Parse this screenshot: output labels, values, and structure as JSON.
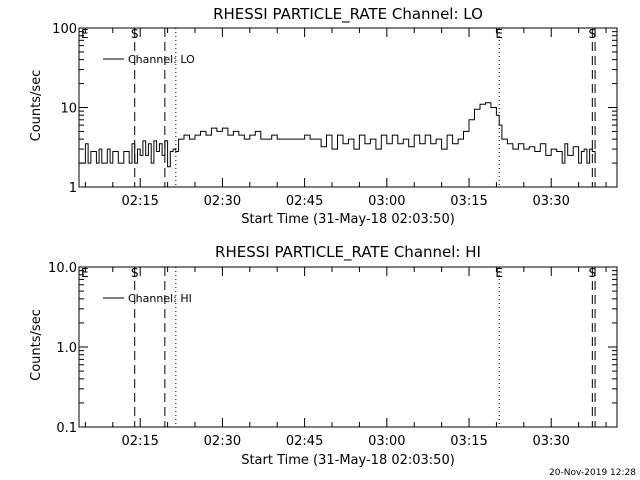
{
  "footer": {
    "timestamp": "20-Nov-2019 12:28"
  },
  "chart_data": [
    {
      "type": "line",
      "title": "RHESSI PARTICLE_RATE Channel: LO",
      "xlabel": "Start Time (31-May-18 02:03:50)",
      "ylabel": "Counts/sec",
      "yscale": "log",
      "ylim": [
        1,
        100
      ],
      "yticks": [
        {
          "v": 1,
          "label": "1"
        },
        {
          "v": 10,
          "label": "10"
        },
        {
          "v": 100,
          "label": "100"
        }
      ],
      "x_ticks": [
        "02:15",
        "02:30",
        "02:45",
        "03:00",
        "03:15",
        "03:30"
      ],
      "legend": {
        "position": "top-left",
        "label": "Channel: LO"
      },
      "markers": [
        {
          "label": "E",
          "time": "02:04",
          "style": "none"
        },
        {
          "label": "S",
          "time": "02:14",
          "style": "dashed"
        },
        {
          "label": "",
          "time": "02:19.5",
          "style": "dashed"
        },
        {
          "label": "",
          "time": "02:21.5",
          "style": "dotted"
        },
        {
          "label": "E",
          "time": "03:20.5",
          "style": "dotted"
        },
        {
          "label": "S",
          "time": "03:37.5",
          "style": "dashed"
        },
        {
          "label": "",
          "time": "03:38",
          "style": "dashed"
        }
      ],
      "series": [
        {
          "name": "Channel: LO",
          "points": [
            [
              "02:04",
              2
            ],
            [
              "02:05",
              3.5
            ],
            [
              "02:05.5",
              2
            ],
            [
              "02:06",
              2.8
            ],
            [
              "02:07",
              2
            ],
            [
              "02:07.5",
              3
            ],
            [
              "02:08",
              2
            ],
            [
              "02:09",
              3
            ],
            [
              "02:09.5",
              2
            ],
            [
              "02:10",
              2.8
            ],
            [
              "02:11",
              2
            ],
            [
              "02:12",
              2.8
            ],
            [
              "02:12.5",
              2.8
            ],
            [
              "02:13",
              2
            ],
            [
              "02:13.5",
              3.5
            ],
            [
              "02:14",
              2
            ],
            [
              "02:14.5",
              3
            ],
            [
              "02:15",
              2.5
            ],
            [
              "02:15.5",
              3.8
            ],
            [
              "02:16",
              2.5
            ],
            [
              "02:16.5",
              3.5
            ],
            [
              "02:17",
              2
            ],
            [
              "02:17.5",
              3.8
            ],
            [
              "02:18",
              2.8
            ],
            [
              "02:18.5",
              3.5
            ],
            [
              "02:19",
              2.5
            ],
            [
              "02:19.5",
              3.8
            ],
            [
              "02:20",
              1.8
            ],
            [
              "02:20.5",
              2.8
            ],
            [
              "02:21",
              3
            ],
            [
              "02:21.5",
              2.8
            ],
            [
              "02:22",
              4
            ],
            [
              "02:23",
              4.5
            ],
            [
              "02:24",
              4
            ],
            [
              "02:25",
              4.5
            ],
            [
              "02:26",
              5
            ],
            [
              "02:27",
              4.5
            ],
            [
              "02:28",
              5.5
            ],
            [
              "02:29",
              5
            ],
            [
              "02:30",
              5.5
            ],
            [
              "02:31",
              4.5
            ],
            [
              "02:32",
              5
            ],
            [
              "02:33",
              4.5
            ],
            [
              "02:34",
              4
            ],
            [
              "02:35",
              4.5
            ],
            [
              "02:36",
              5
            ],
            [
              "02:37",
              4
            ],
            [
              "02:38",
              4
            ],
            [
              "02:39",
              4.5
            ],
            [
              "02:40",
              4
            ],
            [
              "02:41",
              4
            ],
            [
              "02:42",
              4
            ],
            [
              "02:43",
              4
            ],
            [
              "02:44",
              4
            ],
            [
              "02:45",
              4.5
            ],
            [
              "02:46",
              4
            ],
            [
              "02:47",
              4
            ],
            [
              "02:48",
              3.2
            ],
            [
              "02:49",
              4.5
            ],
            [
              "02:50",
              3
            ],
            [
              "02:51",
              4.5
            ],
            [
              "02:52",
              3.5
            ],
            [
              "02:53",
              4
            ],
            [
              "02:54",
              3
            ],
            [
              "02:55",
              4.5
            ],
            [
              "02:56",
              3.5
            ],
            [
              "02:57",
              4
            ],
            [
              "02:58",
              3
            ],
            [
              "02:59",
              4.5
            ],
            [
              "03:00",
              3.5
            ],
            [
              "03:01",
              4.5
            ],
            [
              "03:02",
              3.5
            ],
            [
              "03:03",
              4
            ],
            [
              "03:04",
              3.2
            ],
            [
              "03:05",
              4.5
            ],
            [
              "03:06",
              3.5
            ],
            [
              "03:07",
              4.5
            ],
            [
              "03:08",
              3.5
            ],
            [
              "03:09",
              4
            ],
            [
              "03:10",
              3
            ],
            [
              "03:11",
              4.5
            ],
            [
              "03:12",
              3.5
            ],
            [
              "03:13",
              4
            ],
            [
              "03:14",
              5
            ],
            [
              "03:15",
              7
            ],
            [
              "03:16",
              9.5
            ],
            [
              "03:17",
              11
            ],
            [
              "03:18",
              11.5
            ],
            [
              "03:19",
              10
            ],
            [
              "03:20",
              8
            ],
            [
              "03:20.5",
              6
            ],
            [
              "03:21",
              4
            ],
            [
              "03:22",
              3.5
            ],
            [
              "03:23",
              3
            ],
            [
              "03:24",
              3.5
            ],
            [
              "03:25",
              3
            ],
            [
              "03:26",
              3.2
            ],
            [
              "03:27",
              2.8
            ],
            [
              "03:28",
              3.5
            ],
            [
              "03:29",
              2.5
            ],
            [
              "03:30",
              3
            ],
            [
              "03:31",
              2.8
            ],
            [
              "03:32",
              2
            ],
            [
              "03:32.5",
              3.5
            ],
            [
              "03:33",
              2.5
            ],
            [
              "03:34",
              3.2
            ],
            [
              "03:35",
              2
            ],
            [
              "03:35.5",
              2.8
            ],
            [
              "03:36",
              3
            ],
            [
              "03:36.5",
              2
            ],
            [
              "03:37",
              3
            ],
            [
              "03:37.5",
              2.8
            ],
            [
              "03:38",
              2
            ]
          ]
        }
      ]
    },
    {
      "type": "line",
      "title": "RHESSI PARTICLE_RATE Channel: HI",
      "xlabel": "Start Time (31-May-18 02:03:50)",
      "ylabel": "Counts/sec",
      "yscale": "log",
      "ylim": [
        0.1,
        10
      ],
      "yticks": [
        {
          "v": 0.1,
          "label": "0.1"
        },
        {
          "v": 1,
          "label": "1.0"
        },
        {
          "v": 10,
          "label": "10.0"
        }
      ],
      "x_ticks": [
        "02:15",
        "02:30",
        "02:45",
        "03:00",
        "03:15",
        "03:30"
      ],
      "legend": {
        "position": "top-left",
        "label": "Channel: HI"
      },
      "markers": [
        {
          "label": "E",
          "time": "02:04",
          "style": "none"
        },
        {
          "label": "S",
          "time": "02:14",
          "style": "dashed"
        },
        {
          "label": "",
          "time": "02:19.5",
          "style": "dashed"
        },
        {
          "label": "",
          "time": "02:21.5",
          "style": "dotted"
        },
        {
          "label": "E",
          "time": "03:20.5",
          "style": "dotted"
        },
        {
          "label": "S",
          "time": "03:37.5",
          "style": "dashed"
        },
        {
          "label": "",
          "time": "03:38",
          "style": "dashed"
        }
      ],
      "series": [
        {
          "name": "Channel: HI",
          "points": []
        }
      ]
    }
  ]
}
